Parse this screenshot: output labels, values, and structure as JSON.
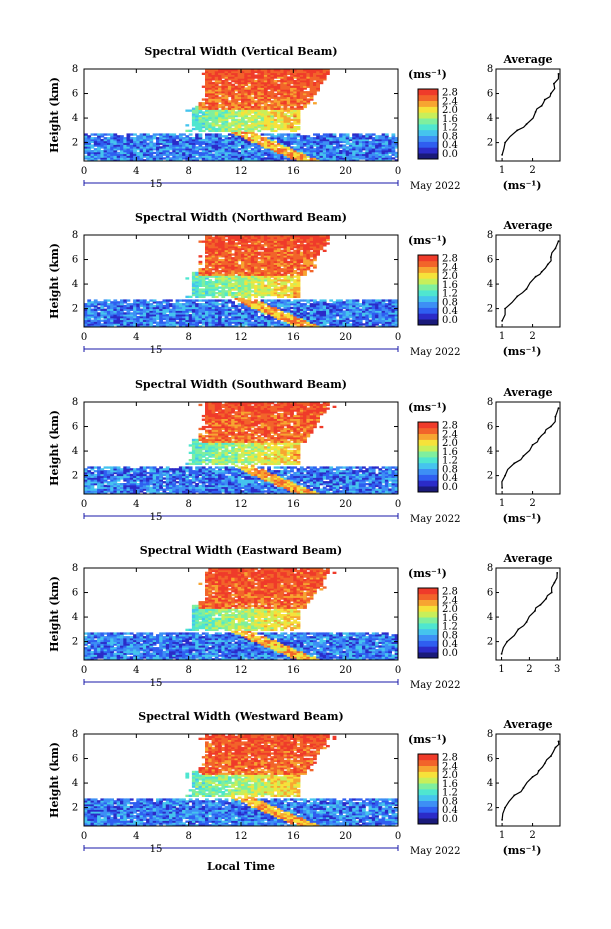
{
  "chart_data": {
    "type": "heatmap",
    "colorbar": {
      "unit": "(ms⁻¹)",
      "ticks": [
        "0.0",
        "0.4",
        "0.8",
        "1.2",
        "1.6",
        "2.0",
        "2.4",
        "2.8"
      ],
      "colors": [
        "#1a1a7a",
        "#2b2bc8",
        "#2f5ef0",
        "#3d8ff5",
        "#45c4ee",
        "#4fe6d0",
        "#7fef9e",
        "#c8ef5a",
        "#f6e23a",
        "#f7a531",
        "#f2642a",
        "#ef3b2a"
      ]
    },
    "x_axis": {
      "ticks": [
        "0",
        "4",
        "8",
        "12",
        "16",
        "20",
        "0"
      ],
      "range": [
        0,
        24
      ],
      "date_label": "15",
      "month_label": "May 2022",
      "title": "Local Time"
    },
    "y_axis": {
      "title": "Height (km)",
      "ticks": [
        "2",
        "4",
        "6",
        "8"
      ],
      "range": [
        0.5,
        8
      ]
    },
    "panels": [
      {
        "title": "Spectral Width (Vertical Beam)",
        "average": {
          "title": "Average",
          "xlabel": "(ms⁻¹)",
          "xticks": [
            "1",
            "2"
          ],
          "xlim": [
            0.8,
            2.9
          ],
          "profile": [
            [
              1.0,
              1.0
            ],
            [
              1.1,
              2.0
            ],
            [
              1.5,
              3.0
            ],
            [
              1.8,
              3.5
            ],
            [
              2.1,
              4.5
            ],
            [
              2.3,
              5.0
            ],
            [
              2.4,
              5.5
            ],
            [
              2.6,
              6.0
            ],
            [
              2.7,
              6.8
            ],
            [
              2.85,
              7.6
            ]
          ]
        }
      },
      {
        "title": "Spectral Width (Northward Beam)",
        "average": {
          "title": "Average",
          "xlabel": "(ms⁻¹)",
          "xticks": [
            "1",
            "2"
          ],
          "xlim": [
            0.8,
            2.9
          ],
          "profile": [
            [
              1.0,
              1.0
            ],
            [
              1.1,
              2.0
            ],
            [
              1.5,
              3.0
            ],
            [
              1.8,
              3.6
            ],
            [
              2.1,
              4.6
            ],
            [
              2.3,
              5.0
            ],
            [
              2.5,
              5.6
            ],
            [
              2.6,
              6.2
            ],
            [
              2.75,
              6.9
            ],
            [
              2.85,
              7.5
            ]
          ]
        }
      },
      {
        "title": "Spectral Width (Southward Beam)",
        "average": {
          "title": "Average",
          "xlabel": "(ms⁻¹)",
          "xticks": [
            "1",
            "2"
          ],
          "xlim": [
            0.8,
            2.9
          ],
          "profile": [
            [
              1.0,
              1.0
            ],
            [
              1.1,
              2.0
            ],
            [
              1.4,
              3.0
            ],
            [
              1.7,
              3.6
            ],
            [
              2.0,
              4.5
            ],
            [
              2.2,
              5.0
            ],
            [
              2.4,
              5.5
            ],
            [
              2.6,
              6.0
            ],
            [
              2.75,
              6.8
            ],
            [
              2.85,
              7.5
            ]
          ]
        }
      },
      {
        "title": "Spectral Width (Eastward Beam)",
        "average": {
          "title": "Average",
          "xlabel": "",
          "xticks": [
            "1",
            "2",
            "3"
          ],
          "xlim": [
            0.8,
            3.1
          ],
          "profile": [
            [
              1.0,
              1.0
            ],
            [
              1.2,
              2.0
            ],
            [
              1.6,
              3.0
            ],
            [
              1.9,
              3.6
            ],
            [
              2.2,
              4.5
            ],
            [
              2.4,
              5.0
            ],
            [
              2.6,
              5.5
            ],
            [
              2.8,
              6.0
            ],
            [
              2.9,
              6.8
            ],
            [
              3.0,
              7.6
            ]
          ]
        }
      },
      {
        "title": "Spectral Width (Westward Beam)",
        "average": {
          "title": "Average",
          "xlabel": "(ms⁻¹)",
          "xticks": [
            "1",
            "2"
          ],
          "xlim": [
            0.8,
            2.9
          ],
          "profile": [
            [
              1.0,
              1.0
            ],
            [
              1.1,
              2.0
            ],
            [
              1.4,
              3.0
            ],
            [
              1.7,
              3.6
            ],
            [
              2.0,
              4.5
            ],
            [
              2.2,
              5.0
            ],
            [
              2.4,
              5.6
            ],
            [
              2.6,
              6.2
            ],
            [
              2.75,
              6.9
            ],
            [
              2.85,
              7.4
            ]
          ]
        }
      }
    ]
  }
}
